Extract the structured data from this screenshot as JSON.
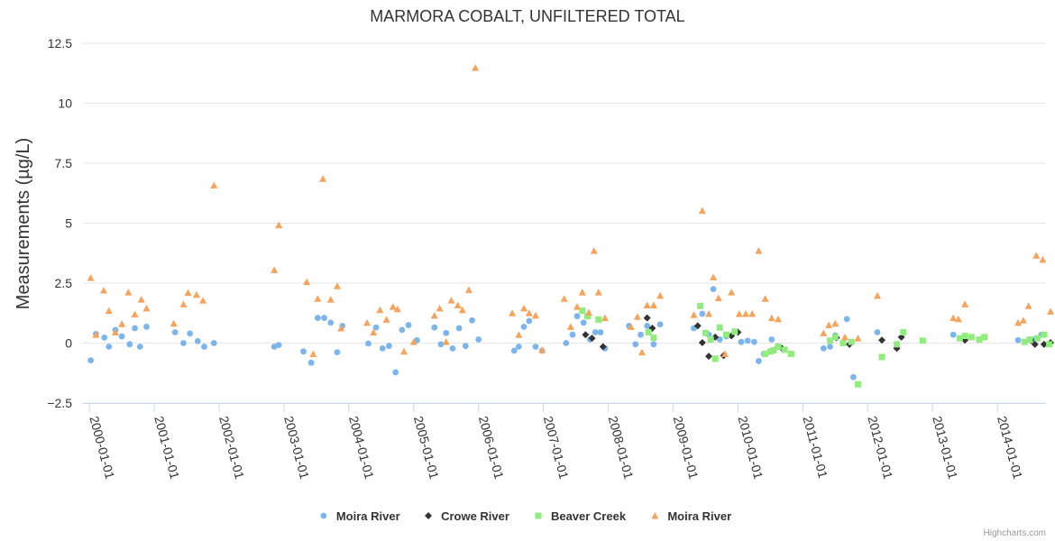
{
  "credits": "Highcharts.com",
  "chart_data": {
    "type": "scatter",
    "title": "MARMORA COBALT, UNFILTERED TOTAL",
    "xlabel": "",
    "ylabel": "Measurements (µg/L)",
    "xlim": [
      1999.9,
      2014.75
    ],
    "ylim": [
      -2.5,
      12.5
    ],
    "yticks": [
      12.5,
      10,
      7.5,
      5,
      2.5,
      0,
      -2.5
    ],
    "ytick_labels": [
      "12.5",
      "10",
      "7.5",
      "5",
      "2.5",
      "0",
      "−2.5"
    ],
    "xticks": [
      2000,
      2001,
      2002,
      2003,
      2004,
      2005,
      2006,
      2007,
      2008,
      2009,
      2010,
      2011,
      2012,
      2013,
      2014
    ],
    "xtick_labels": [
      "2000-01-01",
      "2001-01-01",
      "2002-01-01",
      "2003-01-01",
      "2004-01-01",
      "2005-01-01",
      "2006-01-01",
      "2007-01-01",
      "2008-01-01",
      "2009-01-01",
      "2010-01-01",
      "2011-01-01",
      "2012-01-01",
      "2013-01-01",
      "2014-01-01"
    ],
    "grid": true,
    "legend_position": "bottom-center",
    "series": [
      {
        "name": "Moira River",
        "color": "#7cb5ec",
        "marker": "circle",
        "points": [
          [
            2000.02,
            -0.72
          ],
          [
            2000.1,
            0.38
          ],
          [
            2000.23,
            0.23
          ],
          [
            2000.3,
            -0.15
          ],
          [
            2000.4,
            0.55
          ],
          [
            2000.5,
            0.28
          ],
          [
            2000.62,
            -0.05
          ],
          [
            2000.7,
            0.62
          ],
          [
            2000.78,
            -0.15
          ],
          [
            2000.88,
            0.68
          ],
          [
            2001.32,
            0.45
          ],
          [
            2001.45,
            0.0
          ],
          [
            2001.55,
            0.4
          ],
          [
            2001.67,
            0.08
          ],
          [
            2001.77,
            -0.15
          ],
          [
            2001.92,
            0.0
          ],
          [
            2002.85,
            -0.15
          ],
          [
            2002.92,
            -0.08
          ],
          [
            2003.3,
            -0.35
          ],
          [
            2003.42,
            -0.82
          ],
          [
            2003.52,
            1.05
          ],
          [
            2003.62,
            1.05
          ],
          [
            2003.72,
            0.85
          ],
          [
            2003.82,
            -0.38
          ],
          [
            2003.9,
            0.72
          ],
          [
            2004.3,
            -0.02
          ],
          [
            2004.42,
            0.65
          ],
          [
            2004.52,
            -0.22
          ],
          [
            2004.62,
            -0.12
          ],
          [
            2004.72,
            -1.22
          ],
          [
            2004.82,
            0.55
          ],
          [
            2004.92,
            0.75
          ],
          [
            2005.05,
            0.12
          ],
          [
            2005.32,
            0.65
          ],
          [
            2005.42,
            -0.05
          ],
          [
            2005.5,
            0.42
          ],
          [
            2005.6,
            -0.22
          ],
          [
            2005.7,
            0.62
          ],
          [
            2005.8,
            -0.12
          ],
          [
            2005.9,
            0.95
          ],
          [
            2006.0,
            0.15
          ],
          [
            2006.55,
            -0.32
          ],
          [
            2006.62,
            -0.15
          ],
          [
            2006.7,
            0.68
          ],
          [
            2006.78,
            0.92
          ],
          [
            2006.88,
            -0.15
          ],
          [
            2006.98,
            -0.32
          ],
          [
            2007.35,
            0.0
          ],
          [
            2007.45,
            0.35
          ],
          [
            2007.52,
            1.12
          ],
          [
            2007.62,
            0.85
          ],
          [
            2007.72,
            0.15
          ],
          [
            2007.8,
            0.45
          ],
          [
            2007.88,
            0.45
          ],
          [
            2007.95,
            -0.22
          ],
          [
            2008.32,
            0.72
          ],
          [
            2008.42,
            -0.05
          ],
          [
            2008.5,
            0.35
          ],
          [
            2008.6,
            0.72
          ],
          [
            2008.7,
            -0.05
          ],
          [
            2008.8,
            0.78
          ],
          [
            2009.32,
            0.62
          ],
          [
            2009.45,
            1.22
          ],
          [
            2009.55,
            0.35
          ],
          [
            2009.62,
            2.25
          ],
          [
            2009.72,
            0.15
          ],
          [
            2009.82,
            0.28
          ],
          [
            2010.05,
            0.05
          ],
          [
            2010.15,
            0.1
          ],
          [
            2010.25,
            0.05
          ],
          [
            2010.32,
            -0.75
          ],
          [
            2010.4,
            -0.45
          ],
          [
            2010.52,
            0.15
          ],
          [
            2011.32,
            -0.22
          ],
          [
            2011.42,
            -0.15
          ],
          [
            2011.5,
            0.32
          ],
          [
            2011.68,
            1.0
          ],
          [
            2011.78,
            -1.42
          ],
          [
            2012.15,
            0.45
          ],
          [
            2013.32,
            0.35
          ],
          [
            2014.32,
            0.12
          ],
          [
            2014.55,
            0.15
          ],
          [
            2014.68,
            0.35
          ]
        ]
      },
      {
        "name": "Crowe River",
        "color": "#333333",
        "marker": "diamond",
        "points": [
          [
            2007.65,
            0.35
          ],
          [
            2007.75,
            0.2
          ],
          [
            2007.92,
            -0.15
          ],
          [
            2008.6,
            1.05
          ],
          [
            2008.68,
            0.62
          ],
          [
            2009.38,
            0.72
          ],
          [
            2009.45,
            0.02
          ],
          [
            2009.55,
            -0.55
          ],
          [
            2009.65,
            0.25
          ],
          [
            2009.78,
            -0.52
          ],
          [
            2009.9,
            0.3
          ],
          [
            2010.0,
            0.45
          ],
          [
            2010.62,
            -0.15
          ],
          [
            2010.68,
            -0.22
          ],
          [
            2011.52,
            0.22
          ],
          [
            2011.72,
            -0.05
          ],
          [
            2012.22,
            0.12
          ],
          [
            2012.45,
            -0.22
          ],
          [
            2012.52,
            0.25
          ],
          [
            2013.5,
            0.12
          ],
          [
            2014.52,
            0.12
          ],
          [
            2014.58,
            -0.05
          ],
          [
            2014.72,
            -0.05
          ],
          [
            2014.82,
            0.02
          ]
        ]
      },
      {
        "name": "Beaver Creek",
        "color": "#90ed7d",
        "marker": "square",
        "points": [
          [
            2007.6,
            1.35
          ],
          [
            2007.68,
            1.12
          ],
          [
            2007.85,
            0.98
          ],
          [
            2008.62,
            0.45
          ],
          [
            2008.7,
            0.22
          ],
          [
            2009.42,
            1.55
          ],
          [
            2009.5,
            0.42
          ],
          [
            2009.58,
            0.15
          ],
          [
            2009.65,
            -0.65
          ],
          [
            2009.72,
            0.65
          ],
          [
            2009.82,
            0.35
          ],
          [
            2009.95,
            0.48
          ],
          [
            2010.42,
            -0.45
          ],
          [
            2010.5,
            -0.35
          ],
          [
            2010.55,
            -0.3
          ],
          [
            2010.62,
            -0.15
          ],
          [
            2010.72,
            -0.28
          ],
          [
            2010.82,
            -0.45
          ],
          [
            2011.42,
            0.1
          ],
          [
            2011.5,
            0.25
          ],
          [
            2011.62,
            0.0
          ],
          [
            2011.75,
            0.05
          ],
          [
            2011.85,
            -1.72
          ],
          [
            2012.22,
            -0.58
          ],
          [
            2012.45,
            -0.05
          ],
          [
            2012.55,
            0.45
          ],
          [
            2012.85,
            0.1
          ],
          [
            2013.42,
            0.2
          ],
          [
            2013.5,
            0.3
          ],
          [
            2013.6,
            0.25
          ],
          [
            2013.72,
            0.15
          ],
          [
            2013.8,
            0.25
          ],
          [
            2014.42,
            0.05
          ],
          [
            2014.5,
            0.15
          ],
          [
            2014.62,
            0.2
          ],
          [
            2014.72,
            0.35
          ],
          [
            2014.8,
            -0.05
          ]
        ]
      },
      {
        "name": "Moira River",
        "color": "#f7a35c",
        "marker": "triangle",
        "points": [
          [
            2000.02,
            2.72
          ],
          [
            2000.1,
            0.35
          ],
          [
            2000.22,
            2.2
          ],
          [
            2000.3,
            1.35
          ],
          [
            2000.4,
            0.45
          ],
          [
            2000.5,
            0.8
          ],
          [
            2000.6,
            2.12
          ],
          [
            2000.7,
            1.2
          ],
          [
            2000.8,
            1.82
          ],
          [
            2000.88,
            1.45
          ],
          [
            2001.3,
            0.82
          ],
          [
            2001.45,
            1.62
          ],
          [
            2001.52,
            2.1
          ],
          [
            2001.65,
            2.02
          ],
          [
            2001.75,
            1.78
          ],
          [
            2001.92,
            6.58
          ],
          [
            2002.85,
            3.05
          ],
          [
            2002.92,
            4.92
          ],
          [
            2003.35,
            2.55
          ],
          [
            2003.45,
            -0.45
          ],
          [
            2003.52,
            1.85
          ],
          [
            2003.6,
            6.85
          ],
          [
            2003.72,
            1.82
          ],
          [
            2003.82,
            2.38
          ],
          [
            2003.88,
            0.62
          ],
          [
            2004.28,
            0.85
          ],
          [
            2004.38,
            0.45
          ],
          [
            2004.48,
            1.38
          ],
          [
            2004.58,
            0.98
          ],
          [
            2004.68,
            1.52
          ],
          [
            2004.75,
            1.42
          ],
          [
            2004.85,
            -0.35
          ],
          [
            2005.0,
            0.05
          ],
          [
            2005.32,
            1.15
          ],
          [
            2005.4,
            1.45
          ],
          [
            2005.5,
            0.05
          ],
          [
            2005.58,
            1.78
          ],
          [
            2005.68,
            1.58
          ],
          [
            2005.75,
            1.38
          ],
          [
            2005.85,
            2.22
          ],
          [
            2005.95,
            11.48
          ],
          [
            2006.52,
            1.25
          ],
          [
            2006.62,
            0.35
          ],
          [
            2006.7,
            1.45
          ],
          [
            2006.78,
            1.25
          ],
          [
            2006.88,
            1.15
          ],
          [
            2006.98,
            -0.28
          ],
          [
            2007.32,
            1.85
          ],
          [
            2007.42,
            0.68
          ],
          [
            2007.52,
            1.52
          ],
          [
            2007.6,
            2.12
          ],
          [
            2007.7,
            1.28
          ],
          [
            2007.78,
            3.85
          ],
          [
            2007.85,
            2.12
          ],
          [
            2007.95,
            1.05
          ],
          [
            2008.35,
            0.68
          ],
          [
            2008.45,
            1.1
          ],
          [
            2008.52,
            -0.38
          ],
          [
            2008.6,
            1.58
          ],
          [
            2008.7,
            1.58
          ],
          [
            2008.8,
            1.98
          ],
          [
            2009.32,
            1.18
          ],
          [
            2009.45,
            5.52
          ],
          [
            2009.55,
            1.22
          ],
          [
            2009.62,
            2.75
          ],
          [
            2009.7,
            1.88
          ],
          [
            2009.8,
            -0.45
          ],
          [
            2009.9,
            2.12
          ],
          [
            2010.02,
            1.22
          ],
          [
            2010.12,
            1.22
          ],
          [
            2010.22,
            1.22
          ],
          [
            2010.32,
            3.85
          ],
          [
            2010.42,
            1.85
          ],
          [
            2010.52,
            1.05
          ],
          [
            2010.62,
            1.0
          ],
          [
            2011.32,
            0.42
          ],
          [
            2011.4,
            0.75
          ],
          [
            2011.5,
            0.82
          ],
          [
            2011.65,
            0.25
          ],
          [
            2011.85,
            0.2
          ],
          [
            2012.15,
            1.98
          ],
          [
            2013.32,
            1.05
          ],
          [
            2013.4,
            1.0
          ],
          [
            2013.5,
            1.62
          ],
          [
            2014.32,
            0.85
          ],
          [
            2014.4,
            0.95
          ],
          [
            2014.48,
            1.55
          ],
          [
            2014.6,
            3.65
          ],
          [
            2014.7,
            3.48
          ],
          [
            2014.82,
            1.32
          ]
        ]
      }
    ]
  }
}
